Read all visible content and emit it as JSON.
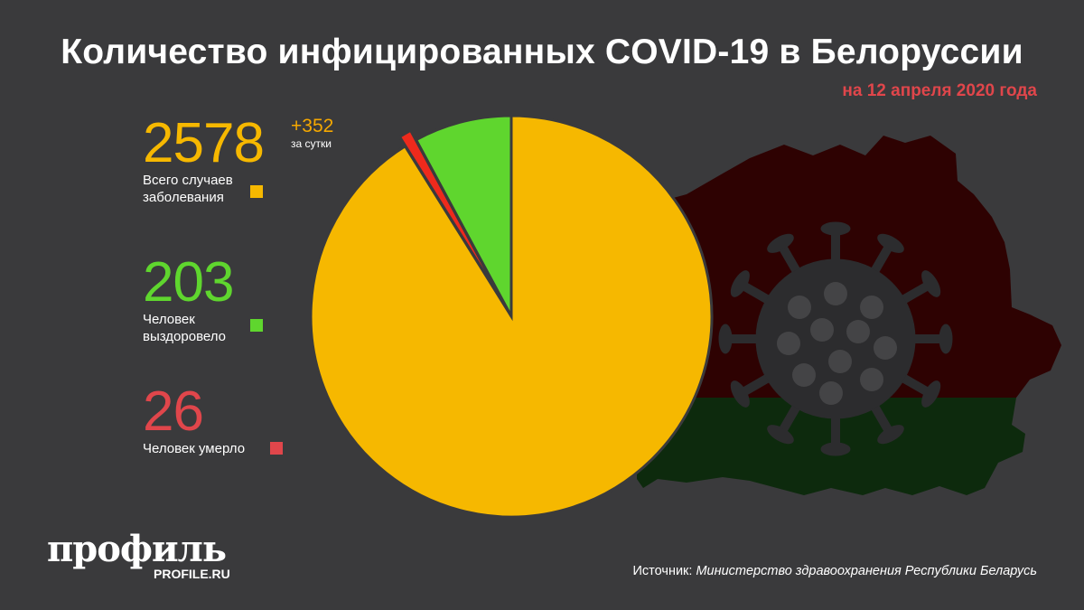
{
  "header": {
    "title": "Количество инфицированных COVID-19 в Белоруссии",
    "subtitle": "на 12 апреля 2020 года"
  },
  "stats": {
    "total": {
      "value": "2578",
      "label_line1": "Всего случаев",
      "label_line2": "заболевания",
      "delta": "+352",
      "delta_label": "за сутки"
    },
    "recovered": {
      "value": "203",
      "label_line1": "Человек",
      "label_line2": "выздоровело"
    },
    "died": {
      "value": "26",
      "label": "Человек умерло"
    }
  },
  "colors": {
    "total": "#f6b800",
    "recovered": "#5fd62e",
    "died": "#e0464b",
    "slice_died": "#ee2a1c",
    "map_red": "#2e0202",
    "map_green": "#0d2a0d",
    "virus": "#2c2c2e"
  },
  "chart_data": {
    "type": "pie",
    "title": "Количество инфицированных COVID-19 в Белоруссии",
    "subtitle": "на 12 апреля 2020 года",
    "slices": [
      {
        "label": "Всего случаев заболевания",
        "value": 2578
      },
      {
        "label": "Человек выздоровело",
        "value": 203
      },
      {
        "label": "Человек умерло",
        "value": 26
      }
    ]
  },
  "footer": {
    "logo": "профиль",
    "logo_sub": "PROFILE.RU",
    "source_prefix": "Источник:",
    "source_text": "Министерство здравоохранения Республики Беларусь"
  }
}
